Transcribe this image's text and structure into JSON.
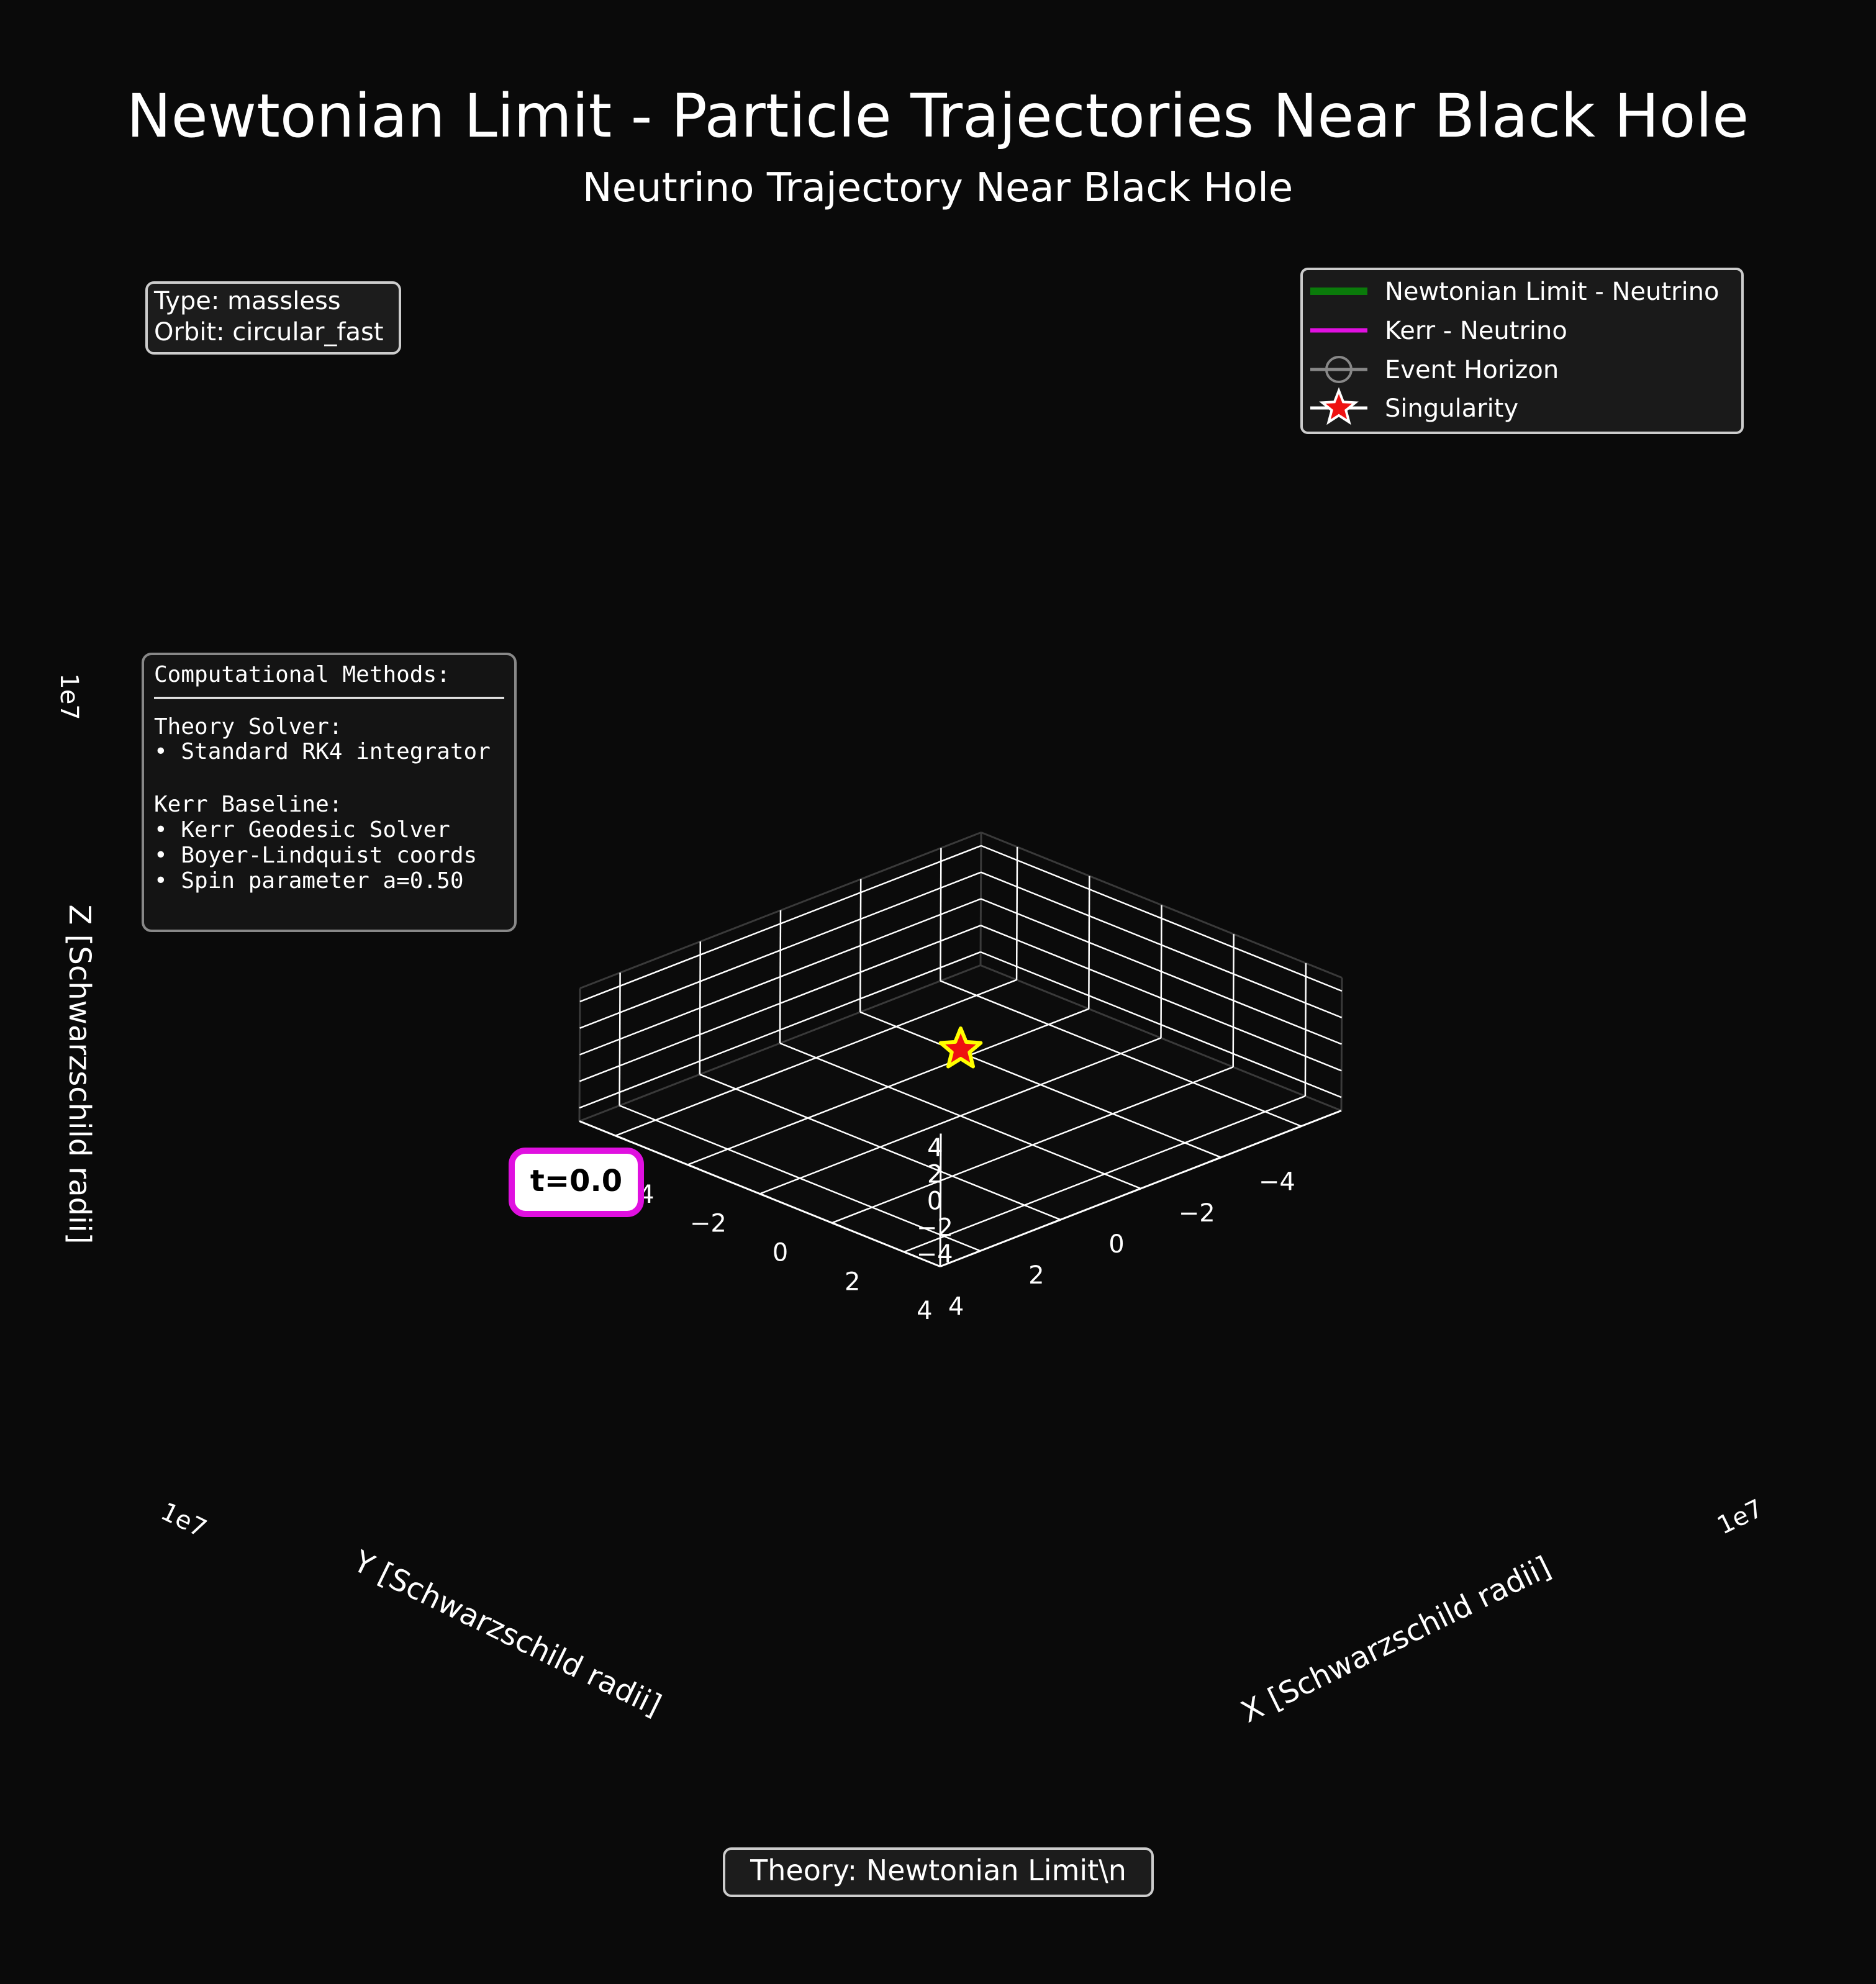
{
  "figure": {
    "title": "Newtonian Limit - Particle Trajectories Near Black Hole",
    "subtitle": "Neutrino Trajectory Near Black Hole",
    "footer": "Theory: Newtonian Limit\\n",
    "colors": {
      "background": "#0a0a0a",
      "grid": "#ffffff",
      "newtonian": "#0a7a0a",
      "kerr": "#e010e0",
      "horizon": "#888888",
      "singularity": "#ee1111",
      "star_edge": "#ffff00"
    }
  },
  "info_box": {
    "lines": [
      "Type: massless",
      "Orbit: circular_fast"
    ]
  },
  "methods_box": {
    "heading": "Computational Methods:",
    "lines": [
      "Theory Solver:",
      "• Standard RK4 integrator",
      "",
      "Kerr Baseline:",
      "• Kerr Geodesic Solver",
      "• Boyer-Lindquist coords",
      "• Spin parameter a=0.50"
    ]
  },
  "time_label": "t=0.0",
  "chart_data": {
    "type": "line",
    "projection": "3d",
    "title": "Neutrino Trajectory Near Black Hole",
    "xlabel": "X [Schwarzschild radii]",
    "ylabel": "Y [Schwarzschild radii]",
    "zlabel": "Z [Schwarzschild radii]",
    "axis_multiplier": "1e7",
    "xlim": [
      -5,
      5
    ],
    "ylim": [
      -5,
      5
    ],
    "zlim": [
      -5,
      5
    ],
    "x_ticks": [
      -4,
      -2,
      0,
      2,
      4
    ],
    "y_ticks": [
      -4,
      -2,
      0,
      2,
      4
    ],
    "z_ticks": [
      -4,
      -2,
      0,
      2,
      4
    ],
    "x_tick_labels": [
      "−4",
      "−2",
      "0",
      "2",
      "4"
    ],
    "y_tick_labels": [
      "−4",
      "−2",
      "0",
      "2",
      "4"
    ],
    "z_tick_labels": [
      "−4",
      "−2",
      "0",
      "2",
      "4"
    ],
    "grid": true,
    "legend_position": "top-right",
    "series": [
      {
        "name": "Newtonian Limit - Neutrino",
        "kind": "line",
        "color": "#0a7a0a",
        "points": []
      },
      {
        "name": "Kerr - Neutrino",
        "kind": "line",
        "color": "#e010e0",
        "points": []
      },
      {
        "name": "Event Horizon",
        "kind": "marker",
        "color": "#888888",
        "points": []
      },
      {
        "name": "Singularity",
        "kind": "marker",
        "color": "#ee1111",
        "points": [
          [
            0,
            0,
            0
          ]
        ]
      }
    ]
  }
}
